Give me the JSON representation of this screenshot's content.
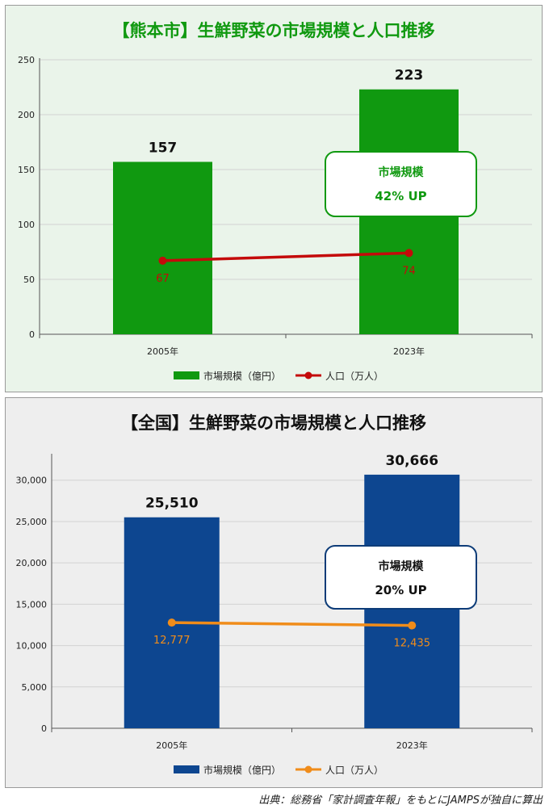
{
  "source_note": "出典：総務省「家計調査年報」をもとにJAMPSが独自に算出",
  "chart_data": [
    {
      "type": "bar",
      "title": "【熊本市】生鮮野菜の市場規模と人口推移",
      "categories": [
        "2005年",
        "2023年"
      ],
      "series": [
        {
          "name": "市場規模（億円）",
          "type": "bar",
          "values": [
            157,
            223
          ],
          "value_labels": [
            "157",
            "223"
          ],
          "color": "#109910"
        },
        {
          "name": "人口（万人）",
          "type": "line",
          "values": [
            67,
            74
          ],
          "value_labels": [
            "67",
            "74"
          ],
          "color": "#c40a0a"
        }
      ],
      "ylim": [
        0,
        250
      ],
      "yticks": [
        0,
        50,
        100,
        150,
        200,
        250
      ],
      "ytick_labels": [
        "0",
        "50",
        "100",
        "150",
        "200",
        "250"
      ],
      "grid": true,
      "legend": "bottom",
      "callout": {
        "title": "市場規模",
        "text": "42% UP"
      },
      "colors": {
        "title": "#109910",
        "background": "#eaf4ea",
        "callout_border": "#109910",
        "callout_text": "#109910"
      }
    },
    {
      "type": "bar",
      "title": "【全国】生鮮野菜の市場規模と人口推移",
      "categories": [
        "2005年",
        "2023年"
      ],
      "series": [
        {
          "name": "市場規模（億円）",
          "type": "bar",
          "values": [
            25510,
            30666
          ],
          "value_labels": [
            "25,510",
            "30,666"
          ],
          "color": "#0d4690"
        },
        {
          "name": "人口（万人）",
          "type": "line",
          "values": [
            12777,
            12435
          ],
          "value_labels": [
            "12,777",
            "12,435"
          ],
          "color": "#f08c1a"
        }
      ],
      "ylim": [
        0,
        33000
      ],
      "yticks": [
        0,
        5000,
        10000,
        15000,
        20000,
        25000,
        30000
      ],
      "ytick_labels": [
        "0",
        "5,000",
        "10,000",
        "15,000",
        "20,000",
        "25,000",
        "30,000"
      ],
      "grid": true,
      "legend": "bottom",
      "callout": {
        "title": "市場規模",
        "text": "20% UP"
      },
      "colors": {
        "title": "#111111",
        "background": "#eeeeee",
        "callout_border": "#0d3c78",
        "callout_text": "#111111"
      }
    }
  ]
}
